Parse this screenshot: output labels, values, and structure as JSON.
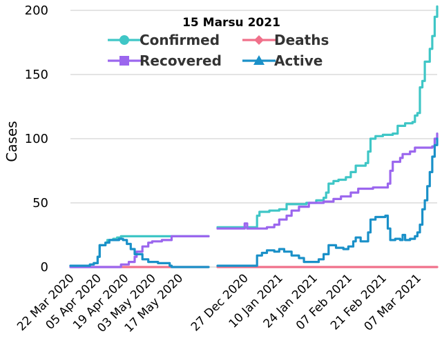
{
  "chart_data": {
    "type": "line",
    "title": "15 Marsu 2021",
    "ylabel": "Cases",
    "xlabel": "",
    "ylim": [
      0,
      200
    ],
    "yticks": [
      0,
      50,
      100,
      150,
      200
    ],
    "grid": "horizontal",
    "legend_position": "top-center",
    "x_segments": [
      {
        "start": "2020-03-22",
        "end": "2020-06-01",
        "ticks": [
          "22 Mar 2020",
          "05 Apr 2020",
          "19 Apr 2020",
          "03 May 2020",
          "17 May 2020"
        ]
      },
      {
        "start": "2020-12-16",
        "end": "2021-03-15",
        "ticks": [
          "27 Dec 2020",
          "10 Jan 2021",
          "24 Jan 2021",
          "07 Feb 2021",
          "21 Feb 2021",
          "07 Mar 2021"
        ]
      }
    ],
    "series": [
      {
        "name": "Confirmed",
        "color": "#3fc6c6",
        "marker": "circle",
        "points": [
          [
            "2020-03-22",
            1
          ],
          [
            "2020-03-31",
            1
          ],
          [
            "2020-04-01",
            2
          ],
          [
            "2020-04-03",
            3
          ],
          [
            "2020-04-05",
            8
          ],
          [
            "2020-04-06",
            17
          ],
          [
            "2020-04-09",
            19
          ],
          [
            "2020-04-10",
            21
          ],
          [
            "2020-04-13",
            22
          ],
          [
            "2020-04-15",
            23
          ],
          [
            "2020-04-17",
            24
          ],
          [
            "2020-06-01",
            24
          ],
          [
            "2020-12-16",
            31
          ],
          [
            "2020-12-31",
            31
          ],
          [
            "2021-01-01",
            40
          ],
          [
            "2021-01-02",
            43
          ],
          [
            "2021-01-06",
            44
          ],
          [
            "2021-01-10",
            45
          ],
          [
            "2021-01-13",
            49
          ],
          [
            "2021-01-18",
            49
          ],
          [
            "2021-01-21",
            50
          ],
          [
            "2021-01-25",
            52
          ],
          [
            "2021-01-28",
            54
          ],
          [
            "2021-01-29",
            58
          ],
          [
            "2021-01-30",
            65
          ],
          [
            "2021-02-01",
            67
          ],
          [
            "2021-02-03",
            68
          ],
          [
            "2021-02-06",
            70
          ],
          [
            "2021-02-08",
            74
          ],
          [
            "2021-02-10",
            79
          ],
          [
            "2021-02-14",
            81
          ],
          [
            "2021-02-15",
            90
          ],
          [
            "2021-02-16",
            100
          ],
          [
            "2021-02-18",
            102
          ],
          [
            "2021-02-21",
            103
          ],
          [
            "2021-02-25",
            104
          ],
          [
            "2021-02-27",
            110
          ],
          [
            "2021-03-02",
            112
          ],
          [
            "2021-03-05",
            113
          ],
          [
            "2021-03-06",
            118
          ],
          [
            "2021-03-07",
            120
          ],
          [
            "2021-03-08",
            140
          ],
          [
            "2021-03-09",
            145
          ],
          [
            "2021-03-10",
            160
          ],
          [
            "2021-03-12",
            170
          ],
          [
            "2021-03-13",
            180
          ],
          [
            "2021-03-14",
            195
          ],
          [
            "2021-03-15",
            203
          ]
        ]
      },
      {
        "name": "Deaths",
        "color": "#f0708a",
        "marker": "diamond",
        "points": [
          [
            "2020-03-22",
            0
          ],
          [
            "2020-06-01",
            0
          ],
          [
            "2020-12-16",
            0
          ],
          [
            "2021-03-15",
            0
          ]
        ]
      },
      {
        "name": "Recovered",
        "color": "#9b66ee",
        "marker": "square",
        "points": [
          [
            "2020-03-22",
            0
          ],
          [
            "2020-04-14",
            0
          ],
          [
            "2020-04-17",
            2
          ],
          [
            "2020-04-21",
            4
          ],
          [
            "2020-04-24",
            8
          ],
          [
            "2020-04-25",
            12
          ],
          [
            "2020-04-28",
            16
          ],
          [
            "2020-05-01",
            19
          ],
          [
            "2020-05-03",
            20
          ],
          [
            "2020-05-08",
            21
          ],
          [
            "2020-05-13",
            24
          ],
          [
            "2020-06-01",
            24
          ],
          [
            "2020-12-16",
            30
          ],
          [
            "2020-12-26",
            30
          ],
          [
            "2020-12-27",
            34
          ],
          [
            "2020-12-28",
            30
          ],
          [
            "2021-01-05",
            31
          ],
          [
            "2021-01-08",
            33
          ],
          [
            "2021-01-10",
            37
          ],
          [
            "2021-01-13",
            40
          ],
          [
            "2021-01-15",
            44
          ],
          [
            "2021-01-18",
            47
          ],
          [
            "2021-01-22",
            50
          ],
          [
            "2021-01-28",
            51
          ],
          [
            "2021-02-01",
            53
          ],
          [
            "2021-02-04",
            55
          ],
          [
            "2021-02-08",
            58
          ],
          [
            "2021-02-11",
            61
          ],
          [
            "2021-02-17",
            62
          ],
          [
            "2021-02-23",
            65
          ],
          [
            "2021-02-24",
            75
          ],
          [
            "2021-02-25",
            82
          ],
          [
            "2021-02-28",
            85
          ],
          [
            "2021-03-01",
            88
          ],
          [
            "2021-03-04",
            90
          ],
          [
            "2021-03-06",
            93
          ],
          [
            "2021-03-13",
            94
          ],
          [
            "2021-03-14",
            100
          ],
          [
            "2021-03-15",
            104
          ]
        ]
      },
      {
        "name": "Active",
        "color": "#1a90c8",
        "marker": "triangle",
        "points": [
          [
            "2020-03-22",
            1
          ],
          [
            "2020-04-01",
            2
          ],
          [
            "2020-04-03",
            3
          ],
          [
            "2020-04-05",
            8
          ],
          [
            "2020-04-06",
            17
          ],
          [
            "2020-04-09",
            19
          ],
          [
            "2020-04-11",
            21
          ],
          [
            "2020-04-16",
            22
          ],
          [
            "2020-04-18",
            21
          ],
          [
            "2020-04-20",
            18
          ],
          [
            "2020-04-22",
            14
          ],
          [
            "2020-04-24",
            10
          ],
          [
            "2020-04-28",
            6
          ],
          [
            "2020-05-01",
            4
          ],
          [
            "2020-05-06",
            3
          ],
          [
            "2020-05-12",
            1
          ],
          [
            "2020-05-13",
            0
          ],
          [
            "2020-06-01",
            0
          ],
          [
            "2020-12-16",
            1
          ],
          [
            "2020-12-30",
            1
          ],
          [
            "2021-01-01",
            9
          ],
          [
            "2021-01-03",
            11
          ],
          [
            "2021-01-05",
            13
          ],
          [
            "2021-01-08",
            12
          ],
          [
            "2021-01-10",
            14
          ],
          [
            "2021-01-12",
            12
          ],
          [
            "2021-01-15",
            9
          ],
          [
            "2021-01-18",
            7
          ],
          [
            "2021-01-20",
            4
          ],
          [
            "2021-01-24",
            4
          ],
          [
            "2021-01-26",
            6
          ],
          [
            "2021-01-28",
            10
          ],
          [
            "2021-01-30",
            17
          ],
          [
            "2021-02-02",
            15
          ],
          [
            "2021-02-05",
            14
          ],
          [
            "2021-02-07",
            16
          ],
          [
            "2021-02-09",
            20
          ],
          [
            "2021-02-10",
            23
          ],
          [
            "2021-02-12",
            20
          ],
          [
            "2021-02-15",
            27
          ],
          [
            "2021-02-16",
            37
          ],
          [
            "2021-02-18",
            39
          ],
          [
            "2021-02-22",
            40
          ],
          [
            "2021-02-23",
            30
          ],
          [
            "2021-02-24",
            21
          ],
          [
            "2021-02-26",
            22
          ],
          [
            "2021-02-28",
            21
          ],
          [
            "2021-03-01",
            25
          ],
          [
            "2021-03-02",
            21
          ],
          [
            "2021-03-04",
            22
          ],
          [
            "2021-03-06",
            24
          ],
          [
            "2021-03-07",
            27
          ],
          [
            "2021-03-08",
            33
          ],
          [
            "2021-03-09",
            45
          ],
          [
            "2021-03-10",
            52
          ],
          [
            "2021-03-11",
            63
          ],
          [
            "2021-03-12",
            74
          ],
          [
            "2021-03-13",
            86
          ],
          [
            "2021-03-14",
            95
          ],
          [
            "2021-03-15",
            100
          ]
        ]
      }
    ]
  }
}
